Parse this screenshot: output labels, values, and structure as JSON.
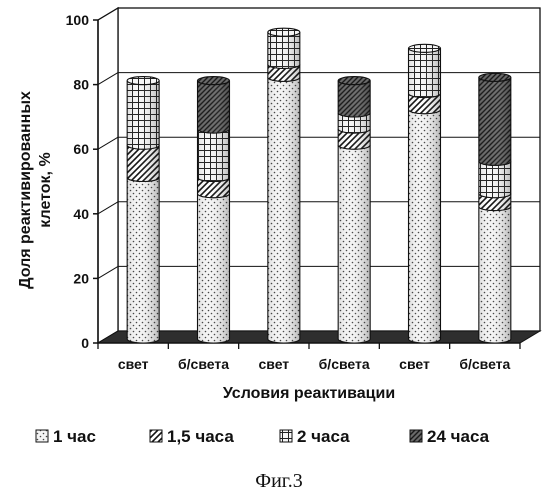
{
  "chart_data": {
    "type": "bar",
    "stacked": true,
    "style": "3d-cylinder",
    "categories": [
      "свет",
      "б/света",
      "свет",
      "б/света",
      "свет",
      "б/света"
    ],
    "series": [
      {
        "name": "1 час",
        "values": [
          50,
          45,
          81,
          60,
          71,
          41
        ]
      },
      {
        "name": "1,5 часа",
        "values": [
          10,
          5,
          4,
          5,
          5,
          4
        ]
      },
      {
        "name": "2 часа",
        "values": [
          20,
          15,
          10,
          5,
          14,
          10
        ]
      },
      {
        "name": "24 часа",
        "values": [
          0,
          15,
          0,
          10,
          0,
          26
        ]
      }
    ],
    "xlabel": "Условия реактивации",
    "ylabel_lines": [
      "Доля реактивированных",
      "клеток, %"
    ],
    "yticks": [
      0,
      20,
      40,
      60,
      80,
      100
    ],
    "ylim": [
      0,
      100
    ],
    "grid": true,
    "legend_position": "bottom"
  },
  "caption": "Фиг.3"
}
